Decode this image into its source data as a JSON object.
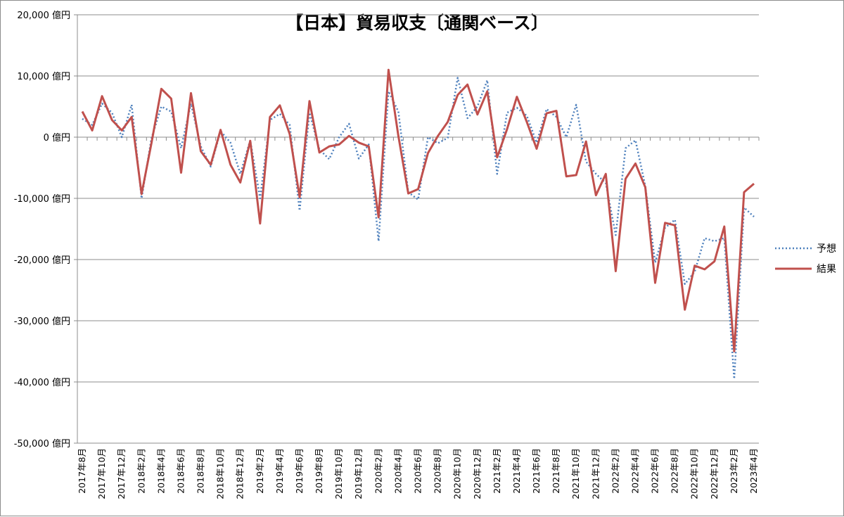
{
  "chart_data": {
    "type": "line",
    "title": "【日本】貿易収支〔通関ベース〕",
    "y_unit": "億円",
    "ylim": [
      -50000,
      20000
    ],
    "y_ticks": [
      20000,
      10000,
      0,
      -10000,
      -20000,
      -30000,
      -40000,
      -50000
    ],
    "y_tick_labels": [
      "20,000 億円",
      "10,000 億円",
      "0 億円",
      "-10,000 億円",
      "-20,000 億円",
      "-30,000 億円",
      "-40,000 億円",
      "-50,000 億円"
    ],
    "grid": "horizontal",
    "legend_position": "right",
    "x": [
      "2017年8月",
      "2017年9月",
      "2017年10月",
      "2017年11月",
      "2017年12月",
      "2018年1月",
      "2018年2月",
      "2018年3月",
      "2018年4月",
      "2018年5月",
      "2018年6月",
      "2018年7月",
      "2018年8月",
      "2018年9月",
      "2018年10月",
      "2018年11月",
      "2018年12月",
      "2019年1月",
      "2019年2月",
      "2019年3月",
      "2019年4月",
      "2019年5月",
      "2019年6月",
      "2019年7月",
      "2019年8月",
      "2019年9月",
      "2019年10月",
      "2019年11月",
      "2019年12月",
      "2020年1月",
      "2020年2月",
      "2020年3月",
      "2020年4月",
      "2020年5月",
      "2020年6月",
      "2020年7月",
      "2020年8月",
      "2020年9月",
      "2020年10月",
      "2020年11月",
      "2020年12月",
      "2021年1月",
      "2021年2月",
      "2021年3月",
      "2021年4月",
      "2021年5月",
      "2021年6月",
      "2021年7月",
      "2021年8月",
      "2021年9月",
      "2021年10月",
      "2021年11月",
      "2021年12月",
      "2022年1月",
      "2022年2月",
      "2022年3月",
      "2022年4月",
      "2022年5月",
      "2022年6月",
      "2022年7月",
      "2022年8月",
      "2022年9月",
      "2022年10月",
      "2022年11月",
      "2022年12月",
      "2023年1月",
      "2023年2月",
      "2023年3月",
      "2023年4月"
    ],
    "x_tick_labels": [
      "2017年8月",
      "2017年10月",
      "2017年12月",
      "2018年2月",
      "2018年4月",
      "2018年6月",
      "2018年8月",
      "2018年10月",
      "2018年12月",
      "2019年2月",
      "2019年4月",
      "2019年6月",
      "2019年8月",
      "2019年10月",
      "2019年12月",
      "2020年2月",
      "2020年4月",
      "2020年6月",
      "2020年8月",
      "2020年10月",
      "2020年12月",
      "2021年2月",
      "2021年4月",
      "2021年6月",
      "2021年8月",
      "2021年10月",
      "2021年12月",
      "2022年2月",
      "2022年4月",
      "2022年6月",
      "2022年8月",
      "2022年10月",
      "2022年12月",
      "2023年2月",
      "2023年4月"
    ],
    "series": [
      {
        "name": "予想",
        "style": "dotted",
        "color": "#4f81bd",
        "values": [
          3000,
          2000,
          5500,
          4000,
          0,
          5300,
          -10000,
          -200,
          5000,
          4200,
          -1800,
          5500,
          -1500,
          -4800,
          1000,
          -900,
          -6000,
          -500,
          -10000,
          2800,
          3800,
          2000,
          -12000,
          4000,
          -2000,
          -3600,
          0,
          2200,
          -3500,
          -1200,
          -17000,
          7500,
          4200,
          -9000,
          -10200,
          0,
          -1000,
          -100,
          9700,
          3100,
          5000,
          9300,
          -6000,
          4000,
          4800,
          3500,
          -900,
          4600,
          3300,
          0,
          5300,
          -4000,
          -6000,
          -7500,
          -16000,
          -1800,
          -500,
          -8000,
          -20500,
          -14800,
          -13500,
          -24000,
          -22000,
          -16500,
          -17000,
          -16500,
          -39500,
          -11500,
          -13000
        ]
      },
      {
        "name": "結果",
        "style": "solid",
        "color": "#c0504d",
        "values": [
          4200,
          1100,
          6700,
          2800,
          1100,
          3300,
          -9300,
          -1000,
          7900,
          6300,
          -5800,
          7200,
          -2300,
          -4500,
          1200,
          -4500,
          -7400,
          -600,
          -14100,
          3300,
          5200,
          500,
          -9800,
          5900,
          -2500,
          -1500,
          -1200,
          200,
          -900,
          -1500,
          -13100,
          11000,
          200,
          -9200,
          -8500,
          -2600,
          200,
          2500,
          6900,
          8600,
          3700,
          7500,
          -3300,
          1300,
          6600,
          2500,
          -1900,
          3900,
          4300,
          -6400,
          -6200,
          -700,
          -9500,
          -6000,
          -21900,
          -6800,
          -4300,
          -8200,
          -23800,
          -14000,
          -14400,
          -28200,
          -21000,
          -21600,
          -20300,
          -14600,
          -35000,
          -9000,
          -7600
        ]
      }
    ]
  }
}
